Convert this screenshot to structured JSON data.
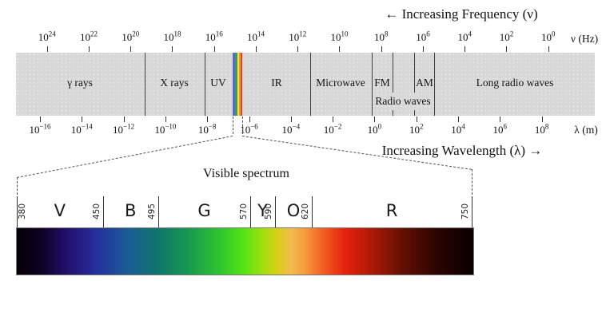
{
  "header": {
    "frequency_title": "← Increasing Frequency (ν)",
    "frequency_unit": "ν (Hz)"
  },
  "footer": {
    "wavelength_title": "Increasing Wavelength (λ) →",
    "wavelength_unit": "λ (m)"
  },
  "frequency_exponents": [
    24,
    22,
    20,
    18,
    16,
    14,
    12,
    10,
    8,
    6,
    4,
    2,
    0
  ],
  "wavelength_exponents": [
    -16,
    -14,
    -12,
    -10,
    -8,
    -6,
    -4,
    -2,
    0,
    2,
    4,
    6,
    8
  ],
  "bands": {
    "gamma": "γ rays",
    "xrays": "X rays",
    "uv": "UV",
    "ir": "IR",
    "microwave": "Microwave",
    "fm": "FM",
    "am": "AM",
    "radio": "Radio waves",
    "long": "Long radio waves"
  },
  "visible": {
    "title": "Visible spectrum",
    "wavelength_ticks_nm": [
      380,
      450,
      495,
      570,
      590,
      620,
      750
    ],
    "color_letters": [
      "V",
      "B",
      "G",
      "Y",
      "O",
      "R"
    ]
  },
  "colors": {
    "band_background": "#d8d8d8",
    "divider": "#3f3f3f",
    "strip_colors": [
      "#5f68b4",
      "#3e7cc4",
      "#3fa047",
      "#f5e636",
      "#f59a23",
      "#e8402a"
    ],
    "spectrum_stops": [
      {
        "at": 0.002,
        "color": "#050006"
      },
      {
        "at": 0.055,
        "color": "#0e0224"
      },
      {
        "at": 0.109,
        "color": "#230f6b"
      },
      {
        "at": 0.176,
        "color": "#25319f"
      },
      {
        "at": 0.243,
        "color": "#1a5c96"
      },
      {
        "at": 0.31,
        "color": "#0f766a"
      },
      {
        "at": 0.377,
        "color": "#189a4e"
      },
      {
        "at": 0.445,
        "color": "#2ec52e"
      },
      {
        "at": 0.498,
        "color": "#55e414"
      },
      {
        "at": 0.538,
        "color": "#9fdf0d"
      },
      {
        "at": 0.571,
        "color": "#d9cf15"
      },
      {
        "at": 0.6,
        "color": "#f2bd4e"
      },
      {
        "at": 0.632,
        "color": "#f49b3c"
      },
      {
        "at": 0.673,
        "color": "#f35b22"
      },
      {
        "at": 0.721,
        "color": "#e4200d"
      },
      {
        "at": 0.767,
        "color": "#b81b08"
      },
      {
        "at": 0.834,
        "color": "#6d1204"
      },
      {
        "at": 0.914,
        "color": "#2e0500"
      },
      {
        "at": 0.995,
        "color": "#0b0000"
      }
    ]
  }
}
